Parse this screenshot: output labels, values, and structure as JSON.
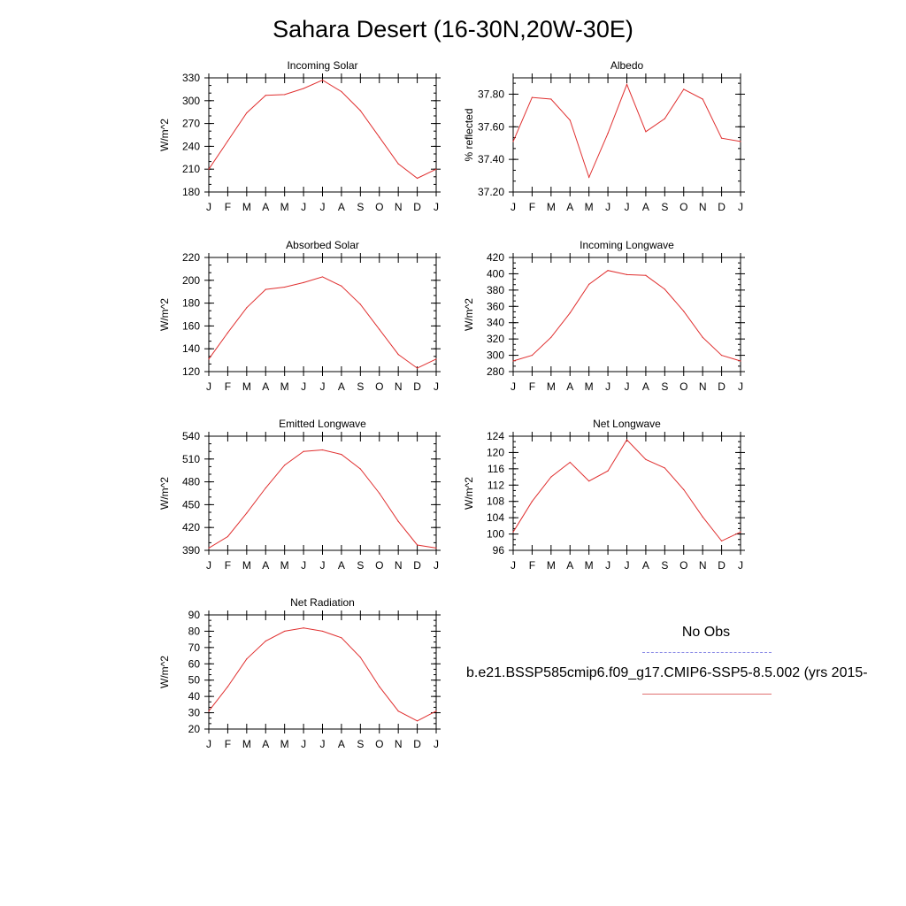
{
  "title": "Sahara Desert (16-30N,20W-30E)",
  "legend": {
    "obs_label": "No Obs",
    "model_label": "b.e21.BSSP585cmip6.f09_g17.CMIP6-SSP5-8.5.002 (yrs 2015-",
    "obs_color": "#8a8ae6",
    "model_color": "#e03030"
  },
  "chart_data": [
    {
      "type": "line",
      "title": "Incoming Solar",
      "ylabel": "W/m^2",
      "categories": [
        "J",
        "F",
        "M",
        "A",
        "M",
        "J",
        "J",
        "A",
        "S",
        "O",
        "N",
        "D",
        "J"
      ],
      "ylim": [
        180,
        330
      ],
      "yticks": [
        180,
        210,
        240,
        270,
        300,
        330
      ],
      "ytick_labels": [
        "180",
        "210",
        "240",
        "270",
        "300",
        "330"
      ],
      "values": [
        210,
        247,
        284,
        307,
        308,
        316,
        327,
        312,
        287,
        252,
        217,
        198,
        210
      ]
    },
    {
      "type": "line",
      "title": "Albedo",
      "ylabel": "% reflected",
      "categories": [
        "J",
        "F",
        "M",
        "A",
        "M",
        "J",
        "J",
        "A",
        "S",
        "O",
        "N",
        "D",
        "J"
      ],
      "ylim": [
        37.2,
        37.9
      ],
      "yticks": [
        37.2,
        37.4,
        37.6,
        37.8
      ],
      "ytick_labels": [
        "37.20",
        "37.40",
        "37.60",
        "37.80"
      ],
      "values": [
        37.51,
        37.78,
        37.77,
        37.64,
        37.29,
        37.56,
        37.86,
        37.57,
        37.65,
        37.83,
        37.77,
        37.53,
        37.51
      ]
    },
    {
      "type": "line",
      "title": "Absorbed Solar",
      "ylabel": "W/m^2",
      "categories": [
        "J",
        "F",
        "M",
        "A",
        "M",
        "J",
        "J",
        "A",
        "S",
        "O",
        "N",
        "D",
        "J"
      ],
      "ylim": [
        120,
        220
      ],
      "yticks": [
        120,
        140,
        160,
        180,
        200,
        220
      ],
      "ytick_labels": [
        "120",
        "140",
        "160",
        "180",
        "200",
        "220"
      ],
      "values": [
        131,
        154,
        176,
        192,
        194,
        198,
        203,
        195,
        179,
        157,
        135,
        123,
        131
      ]
    },
    {
      "type": "line",
      "title": "Incoming Longwave",
      "ylabel": "W/m^2",
      "categories": [
        "J",
        "F",
        "M",
        "A",
        "M",
        "J",
        "J",
        "A",
        "S",
        "O",
        "N",
        "D",
        "J"
      ],
      "ylim": [
        280,
        420
      ],
      "yticks": [
        280,
        300,
        320,
        340,
        360,
        380,
        400,
        420
      ],
      "ytick_labels": [
        "280",
        "300",
        "320",
        "340",
        "360",
        "380",
        "400",
        "420"
      ],
      "values": [
        293,
        300,
        322,
        352,
        387,
        404,
        399,
        398,
        381,
        354,
        322,
        300,
        293
      ]
    },
    {
      "type": "line",
      "title": "Emitted Longwave",
      "ylabel": "W/m^2",
      "categories": [
        "J",
        "F",
        "M",
        "A",
        "M",
        "J",
        "J",
        "A",
        "S",
        "O",
        "N",
        "D",
        "J"
      ],
      "ylim": [
        390,
        540
      ],
      "yticks": [
        390,
        420,
        450,
        480,
        510,
        540
      ],
      "ytick_labels": [
        "390",
        "420",
        "450",
        "480",
        "510",
        "540"
      ],
      "values": [
        393,
        408,
        439,
        472,
        502,
        520,
        522,
        516,
        497,
        465,
        428,
        397,
        393
      ]
    },
    {
      "type": "line",
      "title": "Net Longwave",
      "ylabel": "W/m^2",
      "categories": [
        "J",
        "F",
        "M",
        "A",
        "M",
        "J",
        "J",
        "A",
        "S",
        "O",
        "N",
        "D",
        "J"
      ],
      "ylim": [
        96,
        124
      ],
      "yticks": [
        96,
        100,
        104,
        108,
        112,
        116,
        120,
        124
      ],
      "ytick_labels": [
        "96",
        "100",
        "104",
        "108",
        "112",
        "116",
        "120",
        "124"
      ],
      "values": [
        100.5,
        108.0,
        114.0,
        117.6,
        113.0,
        115.5,
        123.1,
        118.3,
        116.2,
        110.9,
        104.2,
        98.3,
        100.5
      ]
    },
    {
      "type": "line",
      "title": "Net Radiation",
      "ylabel": "W/m^2",
      "categories": [
        "J",
        "F",
        "M",
        "A",
        "M",
        "J",
        "J",
        "A",
        "S",
        "O",
        "N",
        "D",
        "J"
      ],
      "ylim": [
        20,
        90
      ],
      "yticks": [
        20,
        30,
        40,
        50,
        60,
        70,
        80,
        90
      ],
      "ytick_labels": [
        "20",
        "30",
        "40",
        "50",
        "60",
        "70",
        "80",
        "90"
      ],
      "values": [
        31,
        46,
        63,
        74,
        80,
        82,
        80,
        76,
        64,
        46,
        31,
        25,
        31
      ]
    }
  ]
}
